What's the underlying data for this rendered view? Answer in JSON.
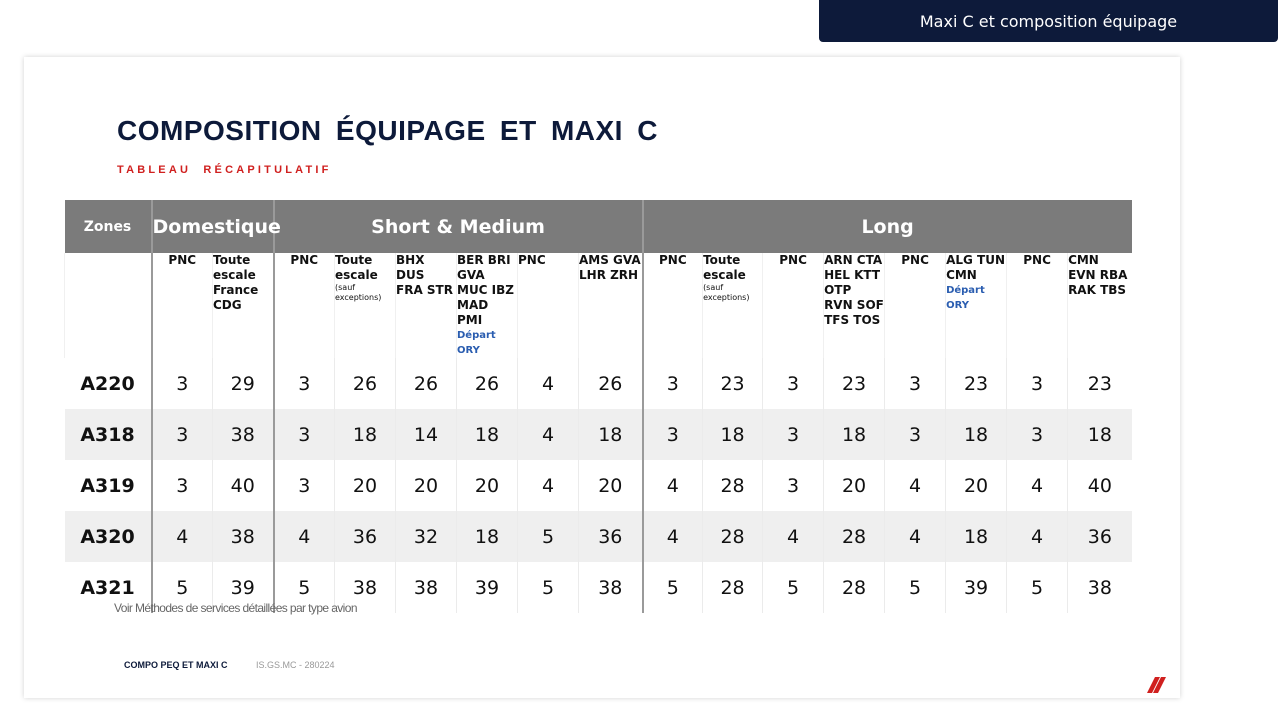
{
  "top_badge": "Maxi C et composition équipage",
  "title": "COMPOSITION ÉQUIPAGE ET MAXI C",
  "subtitle": "TABLEAU RÉCAPITULATIF",
  "table": {
    "zones_label": "Zones",
    "groups": [
      "Domestique",
      "Short & Medium",
      "Long"
    ],
    "subheaders": {
      "dom_pnc": "PNC",
      "dom_escale": [
        "Toute",
        "escale",
        "France",
        "CDG"
      ],
      "sm_pnc": "PNC",
      "sm_escale": [
        "Toute",
        "escale"
      ],
      "sm_escale_note": [
        "(sauf",
        "exceptions)"
      ],
      "sm_bhx": [
        "BHX DUS",
        "FRA STR"
      ],
      "sm_ber": [
        "BER BRI",
        "GVA",
        "MUC IBZ",
        "MAD PMI"
      ],
      "sm_ber_dep": "Départ ORY",
      "sm_pnc2": "PNC",
      "sm_ams": [
        "AMS GVA",
        "LHR ZRH"
      ],
      "lg_pnc": "PNC",
      "lg_escale": [
        "Toute",
        "escale"
      ],
      "lg_escale_note": [
        "(sauf",
        "exceptions)"
      ],
      "lg_pnc2": "PNC",
      "lg_arn": [
        "ARN CTA",
        "HEL KTT",
        "OTP",
        "RVN SOF",
        "TFS TOS"
      ],
      "lg_pnc3": "PNC",
      "lg_alg": [
        "ALG TUN",
        "CMN"
      ],
      "lg_alg_dep": "Départ ORY",
      "lg_pnc4": "PNC",
      "lg_cmn": [
        "CMN",
        "EVN RBA",
        "RAK TBS"
      ]
    },
    "rows": [
      {
        "aircraft": "A220",
        "values": [
          "3",
          "29",
          "3",
          "26",
          "26",
          "26",
          "4",
          "26",
          "3",
          "23",
          "3",
          "23",
          "3",
          "23",
          "3",
          "23"
        ]
      },
      {
        "aircraft": "A318",
        "values": [
          "3",
          "38",
          "3",
          "18",
          "14",
          "18",
          "4",
          "18",
          "3",
          "18",
          "3",
          "18",
          "3",
          "18",
          "3",
          "18"
        ]
      },
      {
        "aircraft": "A319",
        "values": [
          "3",
          "40",
          "3",
          "20",
          "20",
          "20",
          "4",
          "20",
          "4",
          "28",
          "3",
          "20",
          "4",
          "20",
          "4",
          "40"
        ]
      },
      {
        "aircraft": "A320",
        "values": [
          "4",
          "38",
          "4",
          "36",
          "32",
          "18",
          "5",
          "36",
          "4",
          "28",
          "4",
          "28",
          "4",
          "18",
          "4",
          "36"
        ]
      },
      {
        "aircraft": "A321",
        "values": [
          "5",
          "39",
          "5",
          "38",
          "38",
          "39",
          "5",
          "38",
          "5",
          "28",
          "5",
          "28",
          "5",
          "39",
          "5",
          "38"
        ]
      }
    ]
  },
  "note": "Voir Méthodes de services détaillées par type avion",
  "footer": {
    "label": "COMPO PEQ ET MAXI C",
    "code": "IS.GS.MC - 280224"
  },
  "colors": {
    "navy": "#0d1a3a",
    "accent_red": "#d0201f",
    "header_gray": "#7b7b7b",
    "departure_blue": "#2a5db0"
  },
  "icons": {
    "logo": "airline-logo-stripes-icon"
  }
}
